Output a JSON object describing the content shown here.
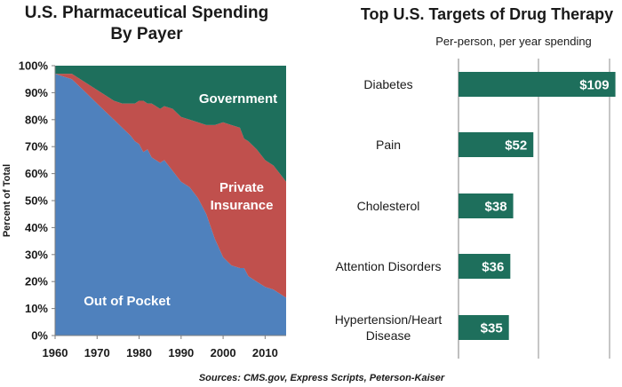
{
  "source": "Sources: CMS.gov, Express Scripts, Peterson-Kaiser",
  "chart_data": [
    {
      "type": "area",
      "stacked": true,
      "title": "U.S. Pharmaceutical Spending By Payer",
      "title_lines": [
        "U.S. Pharmaceutical Spending",
        "By Payer"
      ],
      "xlabel": "",
      "ylabel": "Percent of Total",
      "xlim": [
        1960,
        2015
      ],
      "ylim": [
        0,
        100
      ],
      "x_ticks": [
        1960,
        1970,
        1980,
        1990,
        2000,
        2010
      ],
      "y_ticks": [
        "0%",
        "10%",
        "20%",
        "30%",
        "40%",
        "50%",
        "60%",
        "70%",
        "80%",
        "90%",
        "100%"
      ],
      "x": [
        1960,
        1962,
        1964,
        1966,
        1968,
        1970,
        1972,
        1974,
        1976,
        1978,
        1979,
        1980,
        1981,
        1982,
        1983,
        1984,
        1985,
        1986,
        1988,
        1990,
        1992,
        1994,
        1996,
        1998,
        2000,
        2002,
        2004,
        2005,
        2006,
        2008,
        2010,
        2012,
        2014,
        2015
      ],
      "series": [
        {
          "name": "Out of Pocket",
          "color": "#4f81bd",
          "values": [
            97,
            96,
            95,
            92,
            89,
            86,
            83,
            80,
            77,
            74,
            72,
            71,
            68,
            69,
            66,
            65,
            64,
            65,
            61,
            57,
            55,
            51,
            45,
            36,
            29,
            26,
            25,
            25,
            22,
            20,
            18,
            17,
            15,
            14
          ]
        },
        {
          "name": "Private Insurance",
          "color": "#c0504d",
          "values": [
            0,
            1,
            2,
            3,
            4,
            5,
            6,
            7,
            9,
            12,
            14,
            16,
            19,
            17,
            20,
            20,
            20,
            20,
            23,
            24,
            25,
            28,
            33,
            42,
            50,
            52,
            52,
            48,
            50,
            49,
            47,
            46,
            44,
            43
          ]
        },
        {
          "name": "Government",
          "color": "#1e6f5c",
          "values": [
            3,
            3,
            3,
            5,
            7,
            9,
            11,
            13,
            14,
            14,
            14,
            13,
            13,
            14,
            14,
            15,
            16,
            15,
            16,
            19,
            20,
            21,
            22,
            22,
            21,
            22,
            23,
            27,
            28,
            31,
            35,
            37,
            41,
            43
          ]
        }
      ],
      "labels": [
        "Government",
        "Private Insurance",
        "Out of Pocket"
      ]
    },
    {
      "type": "bar",
      "orientation": "horizontal",
      "title": "Top U.S. Targets of Drug Therapy",
      "subtitle": "Per-person, per year spending",
      "categories": [
        "Diabetes",
        "Pain",
        "Cholesterol",
        "Attention Disorders",
        "Hypertension/Heart Disease"
      ],
      "category_lines": [
        [
          "Diabetes"
        ],
        [
          "Pain"
        ],
        [
          "Cholesterol"
        ],
        [
          "Attention Disorders"
        ],
        [
          "Hypertension/Heart",
          "Disease"
        ]
      ],
      "values": [
        109,
        52,
        38,
        36,
        35
      ],
      "value_labels": [
        "$109",
        "$52",
        "$38",
        "$36",
        "$35"
      ],
      "bar_color": "#1e6f5c",
      "xlim": [
        0,
        130
      ],
      "grid": true
    }
  ]
}
